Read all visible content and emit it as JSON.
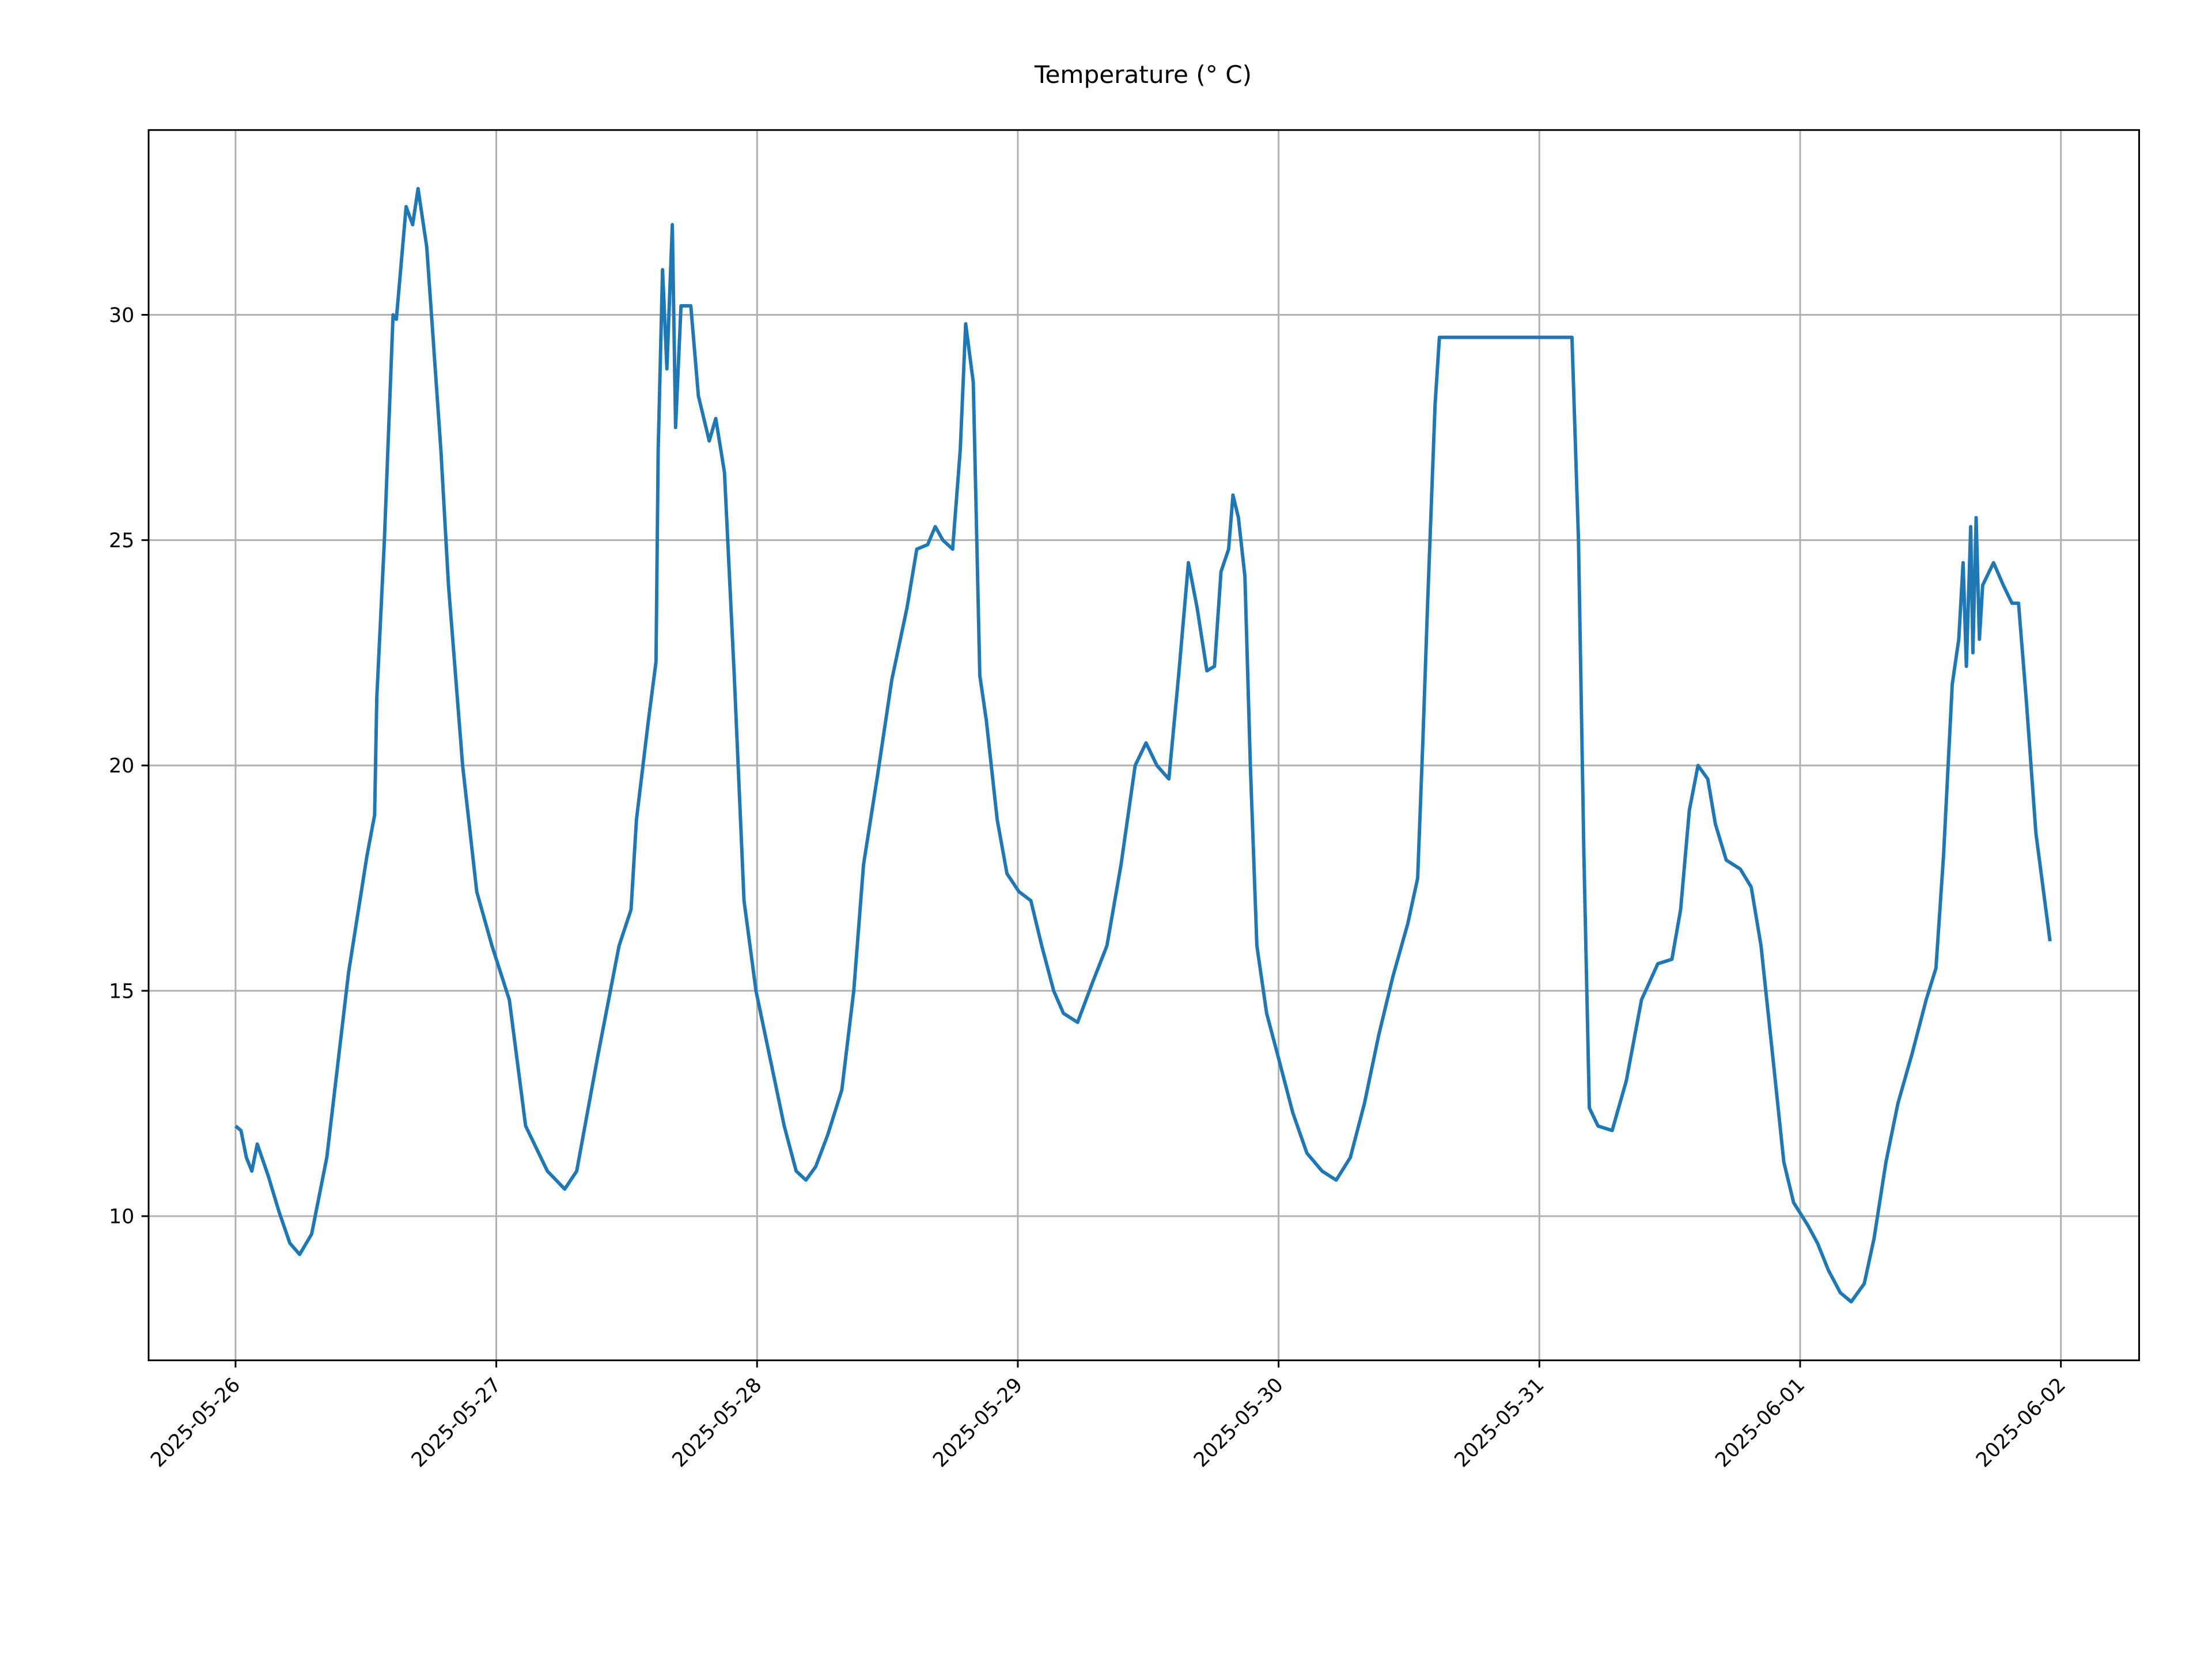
{
  "chart_data": {
    "type": "line",
    "title": "Temperature (° C)",
    "x": [
      "2025-05-26 00:00",
      "2025-05-26 00:30",
      "2025-05-26 01:00",
      "2025-05-26 01:30",
      "2025-05-26 02:00",
      "2025-05-26 03:00",
      "2025-05-26 04:00",
      "2025-05-26 05:00",
      "2025-05-26 05:54",
      "2025-05-26 07:00",
      "2025-05-26 08:24",
      "2025-05-26 10:24",
      "2025-05-26 12:06",
      "2025-05-26 12:48",
      "2025-05-26 13:00",
      "2025-05-26 13:42",
      "2025-05-26 14:30",
      "2025-05-26 14:48",
      "2025-05-26 15:42",
      "2025-05-26 16:18",
      "2025-05-26 16:48",
      "2025-05-26 17:36",
      "2025-05-26 18:54",
      "2025-05-26 19:36",
      "2025-05-26 20:54",
      "2025-05-26 22:12",
      "2025-05-26 23:36",
      "2025-05-27 01:12",
      "2025-05-27 02:42",
      "2025-05-27 04:42",
      "2025-05-27 06:18",
      "2025-05-27 07:24",
      "2025-05-27 09:18",
      "2025-05-27 11:18",
      "2025-05-27 12:24",
      "2025-05-27 12:54",
      "2025-05-27 14:00",
      "2025-05-27 14:42",
      "2025-05-27 14:54",
      "2025-05-27 15:18",
      "2025-05-27 15:42",
      "2025-05-27 16:12",
      "2025-05-27 16:30",
      "2025-05-27 17:00",
      "2025-05-27 17:54",
      "2025-05-27 18:36",
      "2025-05-27 19:36",
      "2025-05-27 20:12",
      "2025-05-27 21:00",
      "2025-05-27 21:54",
      "2025-05-27 22:48",
      "2025-05-27 23:54",
      "2025-05-28 01:12",
      "2025-05-28 02:30",
      "2025-05-28 03:36",
      "2025-05-28 04:30",
      "2025-05-28 05:24",
      "2025-05-28 06:30",
      "2025-05-28 07:48",
      "2025-05-28 08:54",
      "2025-05-28 09:48",
      "2025-05-28 11:06",
      "2025-05-28 12:24",
      "2025-05-28 13:48",
      "2025-05-28 14:42",
      "2025-05-28 15:42",
      "2025-05-28 16:24",
      "2025-05-28 17:06",
      "2025-05-28 18:00",
      "2025-05-28 18:42",
      "2025-05-28 19:12",
      "2025-05-28 19:54",
      "2025-05-28 20:30",
      "2025-05-28 21:06",
      "2025-05-28 22:06",
      "2025-05-28 23:00",
      "2025-05-29 00:06",
      "2025-05-29 01:12",
      "2025-05-29 02:12",
      "2025-05-29 03:18",
      "2025-05-29 04:12",
      "2025-05-29 05:30",
      "2025-05-29 06:54",
      "2025-05-29 08:12",
      "2025-05-29 09:30",
      "2025-05-29 10:48",
      "2025-05-29 11:48",
      "2025-05-29 12:48",
      "2025-05-29 13:54",
      "2025-05-29 14:48",
      "2025-05-29 15:42",
      "2025-05-29 16:30",
      "2025-05-29 17:24",
      "2025-05-29 18:06",
      "2025-05-29 18:42",
      "2025-05-29 19:24",
      "2025-05-29 19:48",
      "2025-05-29 20:18",
      "2025-05-29 20:54",
      "2025-05-29 21:24",
      "2025-05-29 22:00",
      "2025-05-29 22:54",
      "2025-05-30 00:00",
      "2025-05-30 01:18",
      "2025-05-30 02:36",
      "2025-05-30 04:00",
      "2025-05-30 05:18",
      "2025-05-30 06:36",
      "2025-05-30 07:54",
      "2025-05-30 09:12",
      "2025-05-30 10:30",
      "2025-05-30 11:54",
      "2025-05-30 12:48",
      "2025-05-30 13:18",
      "2025-05-30 13:42",
      "2025-05-30 14:24",
      "2025-05-30 14:48",
      "2025-05-31 03:00",
      "2025-05-31 03:36",
      "2025-05-31 04:06",
      "2025-05-31 04:36",
      "2025-05-31 05:24",
      "2025-05-31 06:42",
      "2025-05-31 08:00",
      "2025-05-31 09:24",
      "2025-05-31 10:54",
      "2025-05-31 12:12",
      "2025-05-31 13:00",
      "2025-05-31 13:48",
      "2025-05-31 14:36",
      "2025-05-31 15:30",
      "2025-05-31 16:12",
      "2025-05-31 17:12",
      "2025-05-31 18:30",
      "2025-05-31 19:30",
      "2025-05-31 20:24",
      "2025-05-31 21:30",
      "2025-05-31 22:30",
      "2025-05-31 23:24",
      "2025-06-01 00:42",
      "2025-06-01 01:36",
      "2025-06-01 02:36",
      "2025-06-01 03:42",
      "2025-06-01 04:42",
      "2025-06-01 05:54",
      "2025-06-01 06:48",
      "2025-06-01 07:54",
      "2025-06-01 09:00",
      "2025-06-01 10:18",
      "2025-06-01 11:36",
      "2025-06-01 12:30",
      "2025-06-01 13:12",
      "2025-06-01 14:00",
      "2025-06-01 14:36",
      "2025-06-01 15:00",
      "2025-06-01 15:18",
      "2025-06-01 15:42",
      "2025-06-01 15:54",
      "2025-06-01 16:12",
      "2025-06-01 16:30",
      "2025-06-01 16:48",
      "2025-06-01 17:48",
      "2025-06-01 18:42",
      "2025-06-01 19:30",
      "2025-06-01 20:06",
      "2025-06-01 20:48",
      "2025-06-01 21:42",
      "2025-06-01 23:00"
    ],
    "values": [
      12.0,
      11.9,
      11.3,
      11.0,
      11.6,
      10.9,
      10.1,
      9.4,
      9.15,
      9.6,
      11.3,
      15.4,
      18.0,
      18.9,
      21.5,
      25.0,
      30.0,
      29.9,
      32.4,
      32.0,
      32.8,
      31.5,
      27.0,
      24.0,
      20.0,
      17.2,
      16.0,
      14.8,
      12.0,
      11.0,
      10.6,
      11.0,
      13.5,
      16.0,
      16.8,
      18.8,
      21.0,
      22.3,
      27.0,
      31.0,
      28.8,
      32.0,
      27.5,
      30.2,
      30.2,
      28.2,
      27.2,
      27.7,
      26.5,
      22.0,
      17.0,
      15.0,
      13.5,
      12.0,
      11.0,
      10.8,
      11.1,
      11.8,
      12.8,
      15.0,
      17.8,
      19.8,
      21.9,
      23.5,
      24.8,
      24.9,
      25.3,
      25.0,
      24.8,
      27.0,
      29.8,
      28.5,
      22.0,
      21.0,
      18.8,
      17.6,
      17.2,
      17.0,
      16.0,
      15.0,
      14.5,
      14.3,
      15.2,
      16.0,
      17.8,
      20.0,
      20.5,
      20.0,
      19.7,
      22.0,
      24.5,
      23.5,
      22.1,
      22.2,
      24.3,
      24.8,
      26.0,
      25.5,
      24.2,
      20.0,
      16.0,
      14.5,
      13.5,
      12.3,
      11.4,
      11.0,
      10.8,
      11.3,
      12.5,
      14.0,
      15.3,
      16.5,
      17.5,
      20.7,
      23.5,
      28.0,
      29.5,
      29.5,
      25.0,
      18.0,
      12.4,
      12.0,
      11.9,
      13.0,
      14.8,
      15.6,
      15.7,
      16.8,
      19.0,
      20.0,
      19.7,
      18.7,
      17.9,
      17.7,
      17.3,
      16.0,
      13.5,
      11.2,
      10.3,
      9.8,
      9.4,
      8.8,
      8.3,
      8.1,
      8.5,
      9.5,
      11.2,
      12.5,
      13.6,
      14.8,
      15.5,
      18.0,
      21.8,
      22.8,
      24.5,
      22.2,
      25.3,
      22.5,
      25.5,
      22.8,
      24.0,
      24.5,
      24.0,
      23.6,
      23.6,
      21.5,
      18.5,
      16.1
    ],
    "color": "#1f77b4",
    "xlim": [
      "2025-05-25 16:00",
      "2025-06-02 07:12"
    ],
    "xticks": [
      "2025-05-26",
      "2025-05-27",
      "2025-05-28",
      "2025-05-29",
      "2025-05-30",
      "2025-05-31",
      "2025-06-01",
      "2025-06-02"
    ],
    "ylim": [
      6.8,
      34.1
    ],
    "yticks": [
      10,
      15,
      20,
      25,
      30
    ],
    "grid": true
  }
}
